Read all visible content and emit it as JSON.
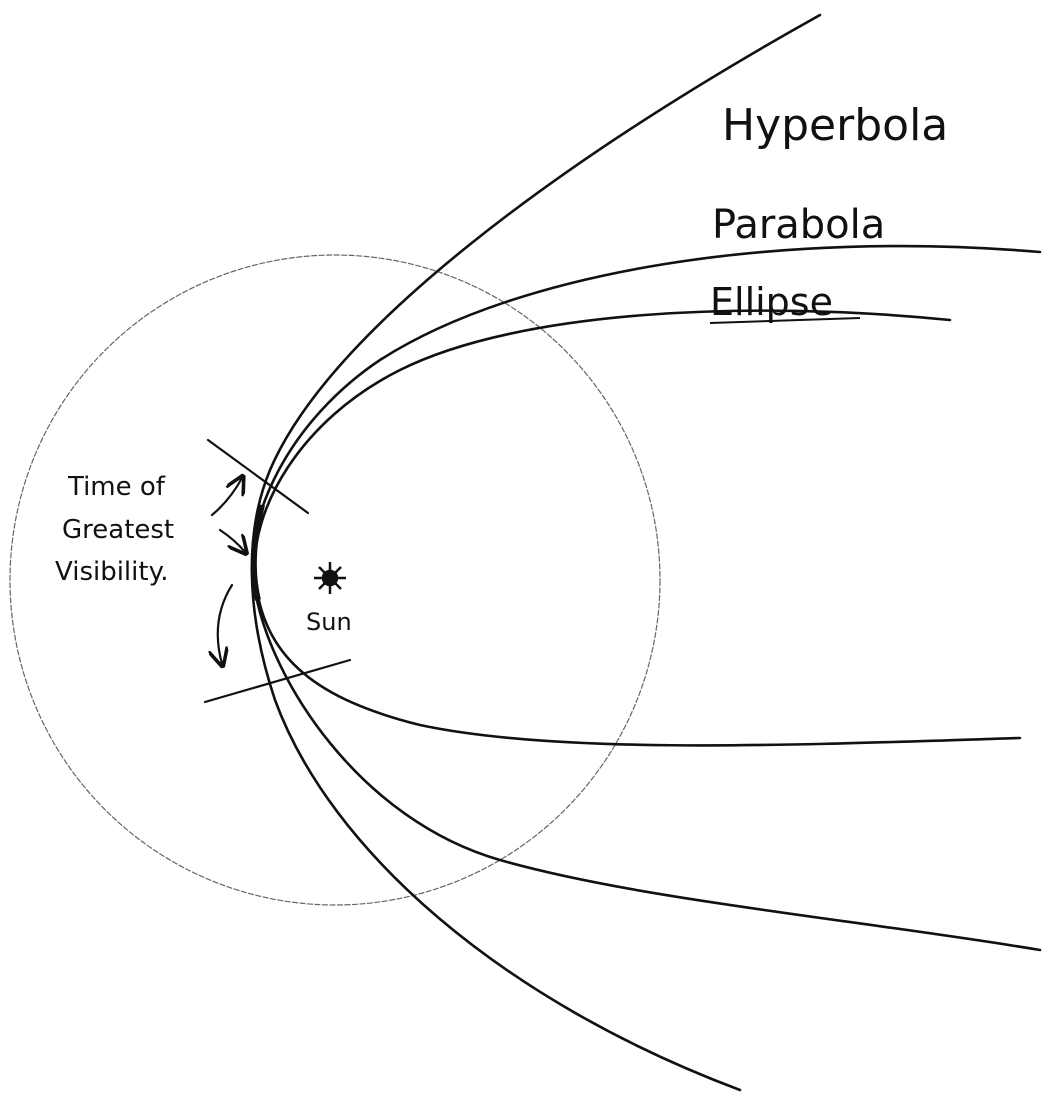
{
  "orbit_labels": {
    "hyperbola": "Hyperbola",
    "parabola": "Parabola",
    "ellipse": "Ellipse"
  },
  "visibility_label": [
    "Time of",
    "Greatest",
    "Visibility."
  ],
  "sun_label": "Sun"
}
